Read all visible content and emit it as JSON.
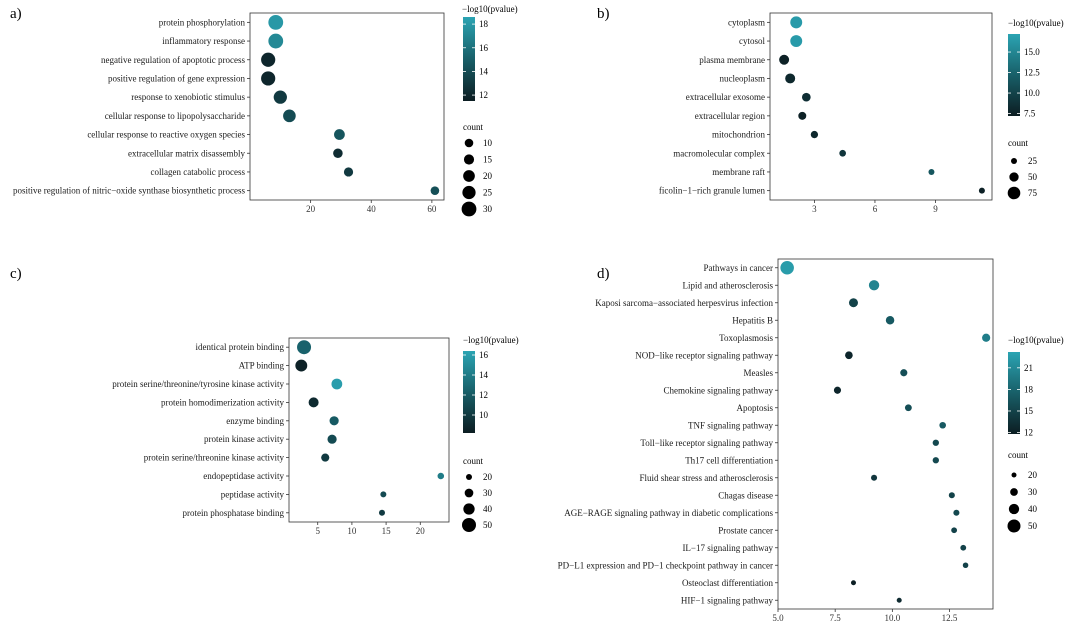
{
  "chart_data": [
    {
      "panel": "a)",
      "type": "scatter",
      "title": "",
      "categories": [
        "protein phosphorylation",
        "inflammatory response",
        "negative regulation of apoptotic process",
        "positive regulation of gene expression",
        "response to xenobiotic stimulus",
        "cellular response to lipopolysaccharide",
        "cellular response to reactive oxygen species",
        "extracellular matrix disassembly",
        "collagen catabolic process",
        "positive regulation of nitric−oxide synthase biosynthetic process"
      ],
      "x": [
        8.5,
        8.5,
        6,
        6,
        10,
        13,
        29.5,
        29,
        32.5,
        61
      ],
      "count": [
        30,
        30,
        28,
        28,
        25,
        23,
        17,
        13,
        12,
        7
      ],
      "neglog10p": [
        18,
        17.2,
        12,
        12,
        13,
        14,
        14.5,
        12.3,
        13,
        14.2
      ],
      "xlim": [
        0,
        64
      ],
      "xticks": [
        20,
        40,
        60
      ],
      "xtick_labels": [
        "20",
        "40",
        "60"
      ],
      "color_legend": {
        "title": "−log10(pvalue)",
        "ticks": [
          12,
          14,
          16,
          18
        ],
        "tick_labels": [
          "12",
          "14",
          "16",
          "18"
        ],
        "range": [
          11.5,
          18.6
        ]
      },
      "size_legend": {
        "title": "count",
        "values": [
          10,
          15,
          20,
          25,
          30
        ],
        "labels": [
          "10",
          "15",
          "20",
          "25",
          "30"
        ]
      }
    },
    {
      "panel": "b)",
      "type": "scatter",
      "title": "",
      "categories": [
        "cytoplasm",
        "cytosol",
        "plasma membrane",
        "nucleoplasm",
        "extracellular exosome",
        "extracellular region",
        "mitochondrion",
        "macromolecular complex",
        "membrane raft",
        "ficolin−1−rich granule lumen"
      ],
      "x": [
        2.1,
        2.1,
        1.5,
        1.8,
        2.6,
        2.4,
        3.0,
        4.4,
        8.8,
        11.3
      ],
      "count": [
        70,
        70,
        55,
        55,
        45,
        40,
        35,
        30,
        22,
        15
      ],
      "neglog10p": [
        16.5,
        16.5,
        7.5,
        8.0,
        8.5,
        7.5,
        8.0,
        9.0,
        11.5,
        7.5
      ],
      "xlim": [
        0.8,
        11.8
      ],
      "xticks": [
        3,
        6,
        9
      ],
      "xtick_labels": [
        "3",
        "6",
        "9"
      ],
      "color_legend": {
        "title": "−log10(pvalue)",
        "ticks": [
          7.5,
          10.0,
          12.5,
          15.0
        ],
        "tick_labels": [
          "7.5",
          "10.0",
          "12.5",
          "15.0"
        ],
        "range": [
          7.2,
          17.2
        ]
      },
      "size_legend": {
        "title": "count",
        "values": [
          25,
          50,
          75
        ],
        "labels": [
          "25",
          "50",
          "75"
        ]
      }
    },
    {
      "panel": "c)",
      "type": "scatter",
      "title": "",
      "categories": [
        "identical protein binding",
        "ATP binding",
        "protein serine/threonine/tyrosine kinase activity",
        "protein homodimerization activity",
        "enzyme binding",
        "protein kinase activity",
        "protein serine/threonine kinase activity",
        "endopeptidase activity",
        "peptidase activity",
        "protein phosphatase binding"
      ],
      "x": [
        3.0,
        2.6,
        7.8,
        4.4,
        7.4,
        7.1,
        6.1,
        23.0,
        14.6,
        14.4
      ],
      "count": [
        50,
        42,
        38,
        35,
        32,
        32,
        28,
        22,
        20,
        15
      ],
      "neglog10p": [
        12.5,
        8.5,
        16,
        9,
        12,
        11,
        10,
        14,
        11,
        10
      ],
      "xlim": [
        0.8,
        24.2
      ],
      "xticks": [
        5,
        10,
        15,
        20
      ],
      "xtick_labels": [
        "5",
        "10",
        "15",
        "20"
      ],
      "color_legend": {
        "title": "−log10(pvalue)",
        "ticks": [
          10,
          12,
          14,
          16
        ],
        "tick_labels": [
          "10",
          "12",
          "14",
          "16"
        ],
        "range": [
          8.2,
          16.4
        ]
      },
      "size_legend": {
        "title": "count",
        "values": [
          20,
          30,
          40,
          50
        ],
        "labels": [
          "20",
          "30",
          "40",
          "50"
        ]
      }
    },
    {
      "panel": "d)",
      "type": "scatter",
      "title": "",
      "categories": [
        "Pathways in cancer",
        "Lipid and atherosclerosis",
        "Kaposi sarcoma−associated herpesvirus infection",
        "Hepatitis B",
        "Toxoplasmosis",
        "NOD−like receptor signaling pathway",
        "Measles",
        "Chemokine signaling pathway",
        "Apoptosis",
        "TNF signaling pathway",
        "Toll−like receptor signaling pathway",
        "Th17 cell differentiation",
        "Fluid shear stress and atherosclerosis",
        "Chagas disease",
        "AGE−RAGE signaling pathway in diabetic complications",
        "Prostate cancer",
        "IL−17 signaling pathway",
        "PD−L1 expression and PD−1 checkpoint pathway in cancer",
        "Osteoclast differentiation",
        "HIF−1 signaling pathway"
      ],
      "x": [
        5.4,
        9.2,
        8.3,
        9.9,
        14.1,
        8.1,
        10.5,
        7.6,
        10.7,
        12.2,
        11.9,
        11.9,
        9.2,
        12.6,
        12.8,
        12.7,
        13.1,
        13.2,
        8.3,
        10.3
      ],
      "count": [
        52,
        40,
        35,
        33,
        32,
        30,
        28,
        28,
        27,
        26,
        25,
        25,
        24,
        24,
        24,
        23,
        23,
        22,
        18,
        16
      ],
      "neglog10p": [
        22.5,
        20.5,
        15,
        17,
        20,
        12.5,
        16,
        12.5,
        16,
        17,
        15.5,
        15.5,
        14,
        15,
        15.5,
        15,
        15,
        15,
        12,
        13
      ],
      "xlim": [
        5.0,
        14.4
      ],
      "xticks": [
        5.0,
        7.5,
        10.0,
        12.5
      ],
      "xtick_labels": [
        "5.0",
        "7.5",
        "10.0",
        "12.5"
      ],
      "color_legend": {
        "title": "−log10(pvalue)",
        "ticks": [
          12,
          15,
          18,
          21
        ],
        "tick_labels": [
          "12",
          "15",
          "18",
          "21"
        ],
        "range": [
          11.8,
          23.2
        ]
      },
      "size_legend": {
        "title": "count",
        "values": [
          20,
          30,
          40,
          50
        ],
        "labels": [
          "20",
          "30",
          "40",
          "50"
        ]
      }
    }
  ]
}
